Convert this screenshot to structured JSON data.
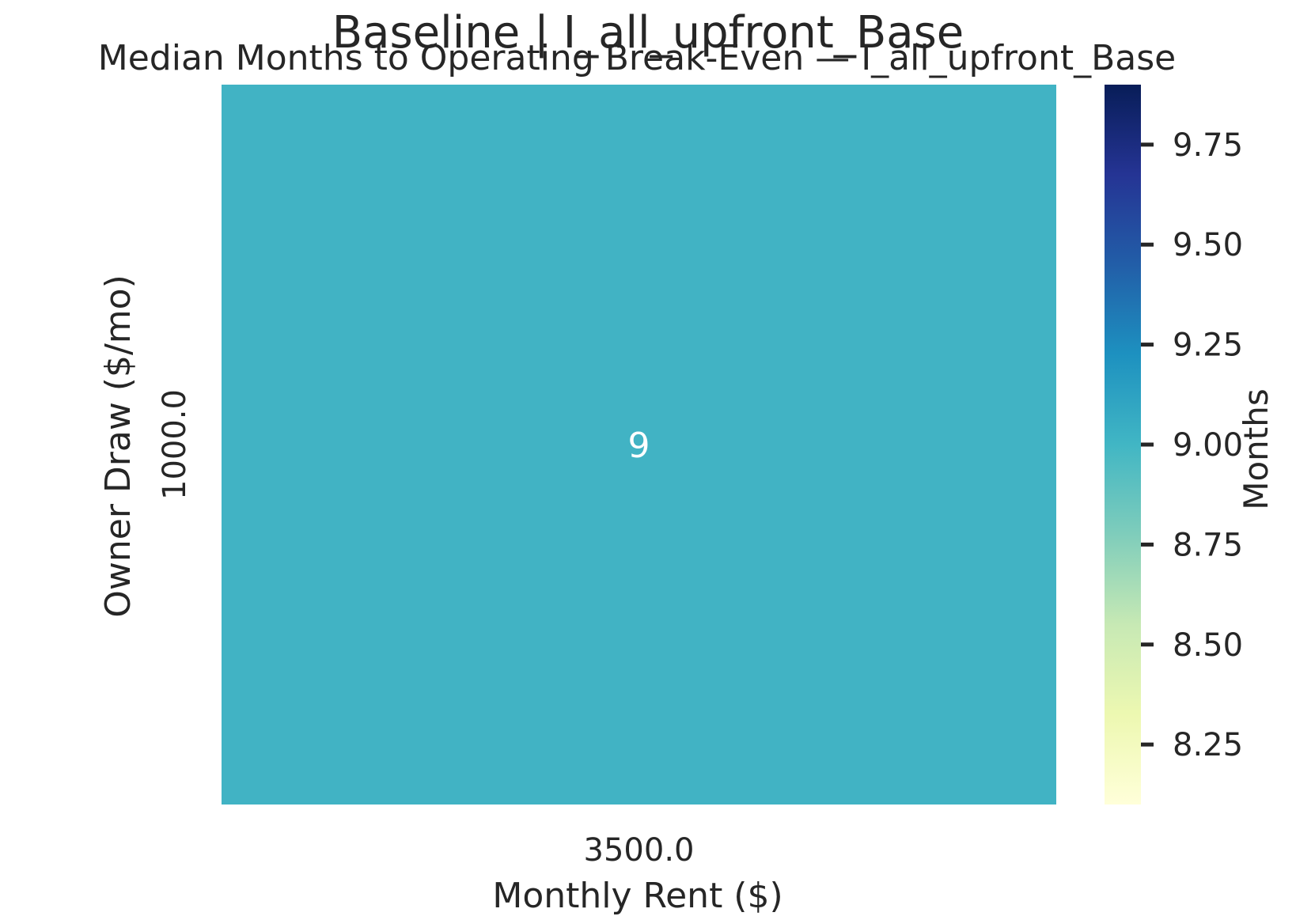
{
  "figure": {
    "suptitle": "Baseline | I_all_upfront_Base"
  },
  "chart_data": {
    "type": "heatmap",
    "title": "Median Months to Operating Break-Even — I_all_upfront_Base",
    "xlabel": "Monthly Rent ($)",
    "ylabel": "Owner Draw ($/mo)",
    "x_categories": [
      "3500.0"
    ],
    "y_categories": [
      "1000.0"
    ],
    "values": [
      [
        9
      ]
    ],
    "annotations": [
      [
        "9"
      ]
    ],
    "colormap": "YlGnBu",
    "cell_color": "#41b3c4",
    "annotation_color": "#ffffff",
    "colorbar": {
      "label": "Months",
      "range": [
        8.1,
        9.9
      ],
      "ticks": [
        8.25,
        8.5,
        8.75,
        9.0,
        9.25,
        9.5,
        9.75
      ],
      "tick_labels": [
        "8.25",
        "8.50",
        "8.75",
        "9.00",
        "9.25",
        "9.50",
        "9.75"
      ]
    }
  }
}
